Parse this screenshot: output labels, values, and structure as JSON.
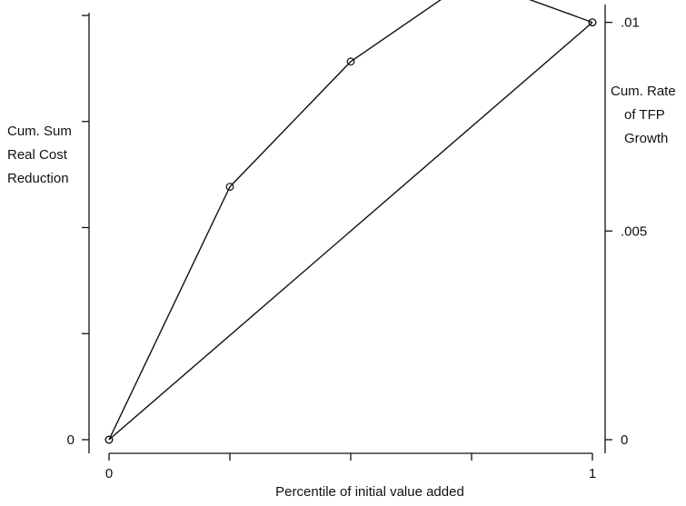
{
  "chart_data": {
    "type": "line",
    "title": "",
    "xlabel": "Percentile of initial value added",
    "ylabel_left": [
      "Cum. Sum",
      "Real Cost",
      "Reduction"
    ],
    "ylabel_right": [
      "Cum. Rate",
      "of TFP",
      "Growth"
    ],
    "xlim": [
      0,
      1
    ],
    "ylim_right": [
      0,
      0.0101
    ],
    "x_ticks": [
      0,
      0.25,
      0.5,
      0.75,
      1
    ],
    "x_tick_labels": [
      {
        "value": 0,
        "label": "0"
      },
      {
        "value": 1,
        "label": "1"
      }
    ],
    "y_left_ticks": [
      0,
      0.25,
      0.5,
      0.75,
      1
    ],
    "y_left_tick_labels": [
      {
        "value": 0,
        "label": "0"
      }
    ],
    "y_right_tick_labels": [
      {
        "value": 0,
        "label": "0"
      },
      {
        "value": 0.005,
        "label": ".005"
      },
      {
        "value": 0.01,
        "label": ".01"
      }
    ],
    "grid": false,
    "series": [
      {
        "x": [
          0,
          0.25,
          0.5,
          0.75,
          1
        ],
        "y": [
          0,
          0.00606,
          0.00906,
          0.01105,
          0.01
        ],
        "markers": true
      },
      {
        "x": [
          0,
          1
        ],
        "y": [
          0,
          0.01
        ],
        "markers": true
      }
    ]
  }
}
